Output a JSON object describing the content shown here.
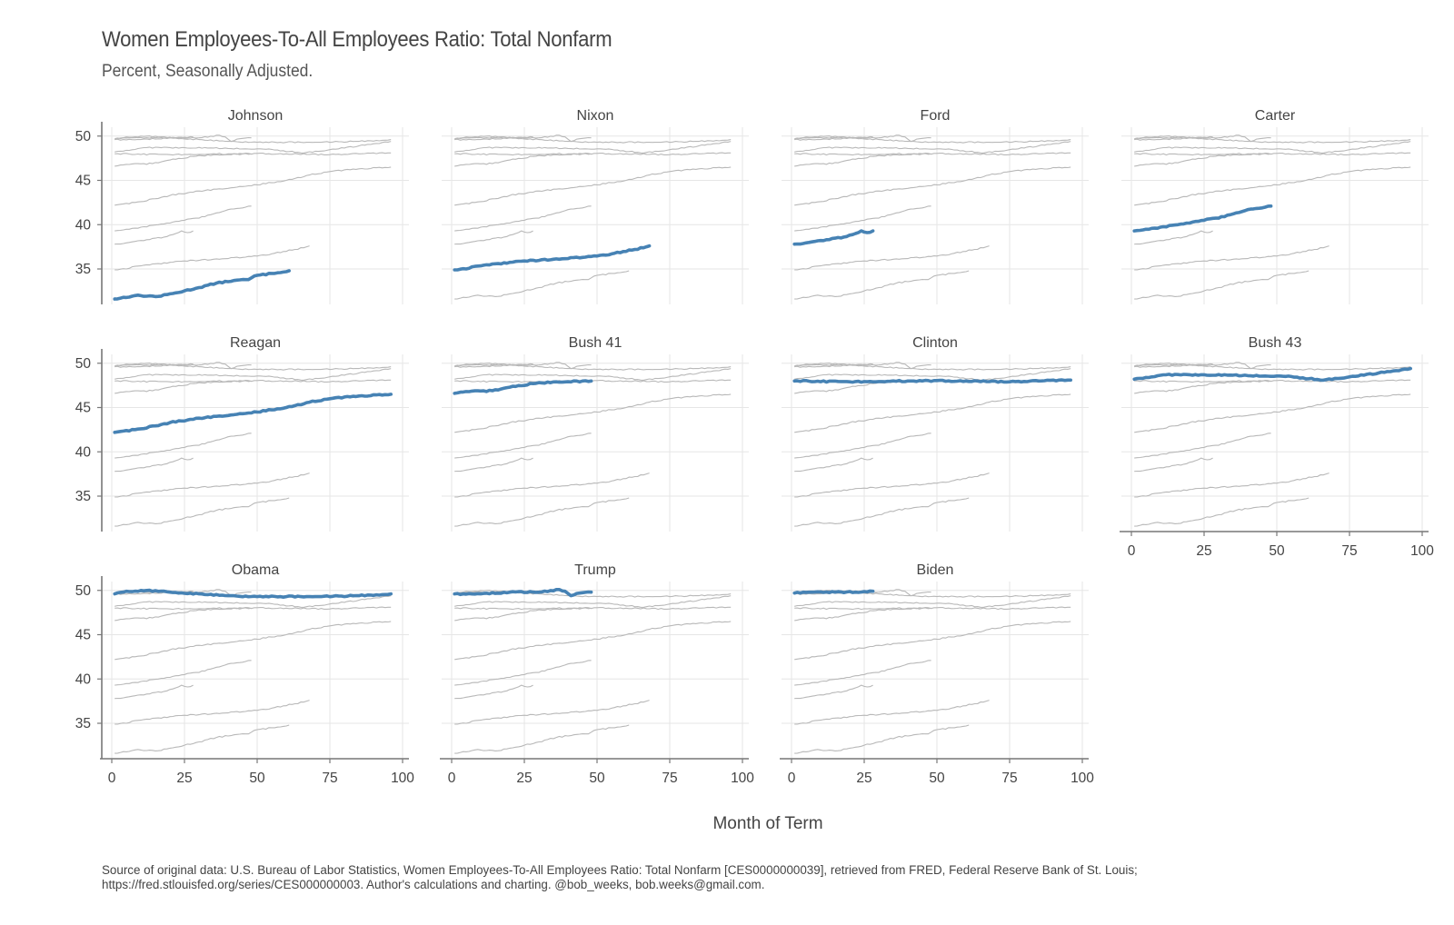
{
  "title": "Women Employees-To-All Employees Ratio: Total Nonfarm",
  "subtitle": "Percent, Seasonally Adjusted.",
  "caption_line1": "Source of original data: U.S. Bureau of Labor Statistics, Women Employees-To-All Employees Ratio: Total Nonfarm [CES0000000039], retrieved from FRED, Federal Reserve Bank of St. Louis;",
  "caption_line2": "https://fred.stlouisfed.org/series/CES000000003. Author's calculations and charting. @bob_weeks, bob.weeks@gmail.com.",
  "colors": {
    "highlight": "#4682b4",
    "context": "#b8b8b8",
    "grid": "#e6e6e6",
    "axis": "#777777",
    "text": "#444444"
  },
  "chart_data": {
    "type": "line",
    "layout": "small-multiples",
    "xlabel": "Month of Term",
    "ylabel": "",
    "xlim": [
      0,
      100
    ],
    "ylim": [
      31,
      51
    ],
    "x_ticks": [
      0,
      25,
      50,
      75,
      100
    ],
    "y_ticks": [
      35,
      40,
      45,
      50
    ],
    "grid": true,
    "facets": [
      "Johnson",
      "Nixon",
      "Ford",
      "Carter",
      "Reagan",
      "Bush 41",
      "Clinton",
      "Bush 43",
      "Obama",
      "Trump",
      "Biden"
    ],
    "series": [
      {
        "name": "Johnson",
        "months": 61,
        "points": [
          [
            1,
            31.6
          ],
          [
            8,
            32.0
          ],
          [
            16,
            31.9
          ],
          [
            22,
            32.3
          ],
          [
            30,
            32.9
          ],
          [
            36,
            33.4
          ],
          [
            42,
            33.7
          ],
          [
            47,
            33.8
          ],
          [
            49,
            34.2
          ],
          [
            55,
            34.5
          ],
          [
            61,
            34.8
          ]
        ]
      },
      {
        "name": "Nixon",
        "months": 68,
        "points": [
          [
            1,
            34.9
          ],
          [
            5,
            35.0
          ],
          [
            8,
            35.3
          ],
          [
            16,
            35.6
          ],
          [
            25,
            35.9
          ],
          [
            35,
            36.1
          ],
          [
            45,
            36.3
          ],
          [
            55,
            36.7
          ],
          [
            63,
            37.2
          ],
          [
            68,
            37.6
          ]
        ]
      },
      {
        "name": "Ford",
        "months": 28,
        "points": [
          [
            1,
            37.8
          ],
          [
            6,
            38.0
          ],
          [
            12,
            38.3
          ],
          [
            18,
            38.6
          ],
          [
            22,
            39.0
          ],
          [
            24,
            39.3
          ],
          [
            26,
            39.1
          ],
          [
            28,
            39.3
          ]
        ]
      },
      {
        "name": "Carter",
        "months": 48,
        "points": [
          [
            1,
            39.3
          ],
          [
            8,
            39.6
          ],
          [
            16,
            40.0
          ],
          [
            25,
            40.5
          ],
          [
            32,
            40.9
          ],
          [
            40,
            41.7
          ],
          [
            48,
            42.1
          ]
        ]
      },
      {
        "name": "Reagan",
        "months": 96,
        "points": [
          [
            1,
            42.2
          ],
          [
            10,
            42.6
          ],
          [
            20,
            43.3
          ],
          [
            30,
            43.8
          ],
          [
            40,
            44.1
          ],
          [
            50,
            44.5
          ],
          [
            60,
            45.0
          ],
          [
            68,
            45.6
          ],
          [
            75,
            46.0
          ],
          [
            85,
            46.3
          ],
          [
            96,
            46.5
          ]
        ]
      },
      {
        "name": "Bush 41",
        "months": 48,
        "points": [
          [
            1,
            46.6
          ],
          [
            6,
            46.8
          ],
          [
            14,
            46.9
          ],
          [
            20,
            47.3
          ],
          [
            28,
            47.7
          ],
          [
            36,
            47.9
          ],
          [
            48,
            48.0
          ]
        ]
      },
      {
        "name": "Clinton",
        "months": 96,
        "points": [
          [
            1,
            48.0
          ],
          [
            20,
            47.9
          ],
          [
            40,
            48.0
          ],
          [
            60,
            48.0
          ],
          [
            75,
            47.9
          ],
          [
            85,
            48.0
          ],
          [
            96,
            48.1
          ]
        ]
      },
      {
        "name": "Bush 43",
        "months": 96,
        "points": [
          [
            1,
            48.2
          ],
          [
            5,
            48.4
          ],
          [
            12,
            48.7
          ],
          [
            25,
            48.7
          ],
          [
            40,
            48.6
          ],
          [
            55,
            48.5
          ],
          [
            65,
            48.1
          ],
          [
            72,
            48.3
          ],
          [
            85,
            48.9
          ],
          [
            96,
            49.4
          ]
        ]
      },
      {
        "name": "Obama",
        "months": 96,
        "points": [
          [
            1,
            49.6
          ],
          [
            5,
            49.9
          ],
          [
            12,
            50.0
          ],
          [
            20,
            49.8
          ],
          [
            30,
            49.6
          ],
          [
            40,
            49.4
          ],
          [
            50,
            49.3
          ],
          [
            60,
            49.3
          ],
          [
            70,
            49.3
          ],
          [
            85,
            49.4
          ],
          [
            96,
            49.6
          ]
        ]
      },
      {
        "name": "Trump",
        "months": 48,
        "points": [
          [
            1,
            49.6
          ],
          [
            10,
            49.6
          ],
          [
            20,
            49.8
          ],
          [
            30,
            49.8
          ],
          [
            37,
            50.1
          ],
          [
            39,
            49.9
          ],
          [
            41,
            49.4
          ],
          [
            44,
            49.7
          ],
          [
            48,
            49.8
          ]
        ]
      },
      {
        "name": "Biden",
        "months": 28,
        "points": [
          [
            1,
            49.7
          ],
          [
            6,
            49.8
          ],
          [
            15,
            49.8
          ],
          [
            22,
            49.8
          ],
          [
            28,
            49.9
          ]
        ]
      }
    ]
  }
}
